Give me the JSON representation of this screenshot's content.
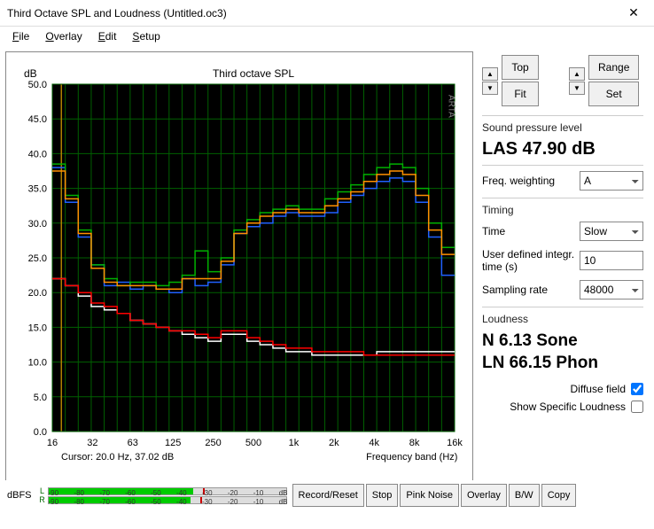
{
  "window": {
    "title": "Third Octave SPL and Loudness (Untitled.oc3)"
  },
  "menu": {
    "file": "File",
    "overlay": "Overlay",
    "edit": "Edit",
    "setup": "Setup"
  },
  "topctrl": {
    "top": "Top",
    "fit": "Fit",
    "range": "Range",
    "set": "Set"
  },
  "spl": {
    "label": "Sound pressure level",
    "reading": "LAS 47.90 dB"
  },
  "freqw": {
    "label": "Freq. weighting",
    "value": "A"
  },
  "timing": {
    "section": "Timing",
    "time_label": "Time",
    "time_value": "Slow",
    "integ_label": "User defined integr. time (s)",
    "integ_value": "10",
    "rate_label": "Sampling rate",
    "rate_value": "48000"
  },
  "loudness": {
    "section": "Loudness",
    "sone": "N 6.13 Sone",
    "phon": "LN 66.15 Phon",
    "diffuse_label": "Diffuse field",
    "specific_label": "Show Specific Loudness"
  },
  "footer": {
    "dbfs": "dBFS",
    "buttons": {
      "record": "Record/Reset",
      "stop": "Stop",
      "pink": "Pink Noise",
      "overlay": "Overlay",
      "bw": "B/W",
      "copy": "Copy"
    }
  },
  "meter": {
    "ch_l": "L",
    "ch_r": "R",
    "ticks": [
      "-90",
      "-80",
      "-70",
      "-60",
      "-50",
      "-40",
      "-30",
      "-20",
      "-10",
      "dB"
    ],
    "ticks_r": [
      "-90",
      "-80",
      "-70",
      "-60",
      "-50",
      "-40",
      "-30",
      "-20",
      "-10",
      "dB"
    ],
    "l_fill_pct": 61,
    "l_peak_pct": 65,
    "r_fill_pct": 60,
    "r_peak_pct": 64
  },
  "chart": {
    "title": "Third octave SPL",
    "ylabel": "dB",
    "xlabel": "Frequency band (Hz)",
    "cursor_text": "Cursor:    20.0 Hz, 37.02 dB",
    "watermark": "ARTA",
    "plot_bg": "#000000",
    "grid_color": "#006000",
    "axis_color": "#333333",
    "cursor_color": "#b08000",
    "ylim": [
      0,
      50
    ],
    "ytick_step": 5,
    "x_ticks": [
      "16",
      "32",
      "63",
      "125",
      "250",
      "500",
      "1k",
      "2k",
      "4k",
      "8k",
      "16k"
    ],
    "n_bands": 31,
    "series": [
      {
        "color": "#2060ff",
        "values": [
          38.0,
          33.0,
          28.0,
          24.0,
          21.0,
          21.5,
          20.5,
          21.0,
          20.5,
          20.0,
          22.0,
          21.0,
          21.5,
          24.0,
          28.5,
          29.5,
          30.0,
          31.0,
          31.5,
          31.0,
          31.0,
          31.5,
          33.0,
          34.0,
          35.0,
          36.0,
          36.5,
          36.0,
          33.0,
          28.0,
          22.5
        ]
      },
      {
        "color": "#00b000",
        "values": [
          38.5,
          34.0,
          29.0,
          24.0,
          22.0,
          21.0,
          21.5,
          21.5,
          21.0,
          21.5,
          22.5,
          26.0,
          23.0,
          25.0,
          29.0,
          30.5,
          31.5,
          32.0,
          32.5,
          32.0,
          32.0,
          33.5,
          34.5,
          35.5,
          37.0,
          38.0,
          38.5,
          38.0,
          35.0,
          30.0,
          26.5
        ]
      },
      {
        "color": "#ff9000",
        "values": [
          37.5,
          33.5,
          28.5,
          23.5,
          21.5,
          21.0,
          21.0,
          21.0,
          20.5,
          20.5,
          22.0,
          22.0,
          22.0,
          24.5,
          28.5,
          30.0,
          31.0,
          31.5,
          32.0,
          31.5,
          31.5,
          32.5,
          33.5,
          34.5,
          36.0,
          37.0,
          37.5,
          37.0,
          34.0,
          29.0,
          25.5
        ]
      },
      {
        "color": "#ffffff",
        "values": [
          22.0,
          21.0,
          19.5,
          18.0,
          17.5,
          17.0,
          16.0,
          15.5,
          15.0,
          14.5,
          14.0,
          13.5,
          13.0,
          14.0,
          14.0,
          13.0,
          12.5,
          12.0,
          11.5,
          11.5,
          11.0,
          11.0,
          11.0,
          11.0,
          11.0,
          11.5,
          11.5,
          11.5,
          11.5,
          11.5,
          11.5
        ]
      },
      {
        "color": "#ff0000",
        "values": [
          22.0,
          21.0,
          20.0,
          18.5,
          18.0,
          17.0,
          16.0,
          15.5,
          15.0,
          14.5,
          14.5,
          14.0,
          13.5,
          14.5,
          14.5,
          13.5,
          13.0,
          12.5,
          12.0,
          12.0,
          11.5,
          11.5,
          11.5,
          11.5,
          11.0,
          11.0,
          11.0,
          11.0,
          11.0,
          11.0,
          11.0
        ]
      }
    ]
  }
}
